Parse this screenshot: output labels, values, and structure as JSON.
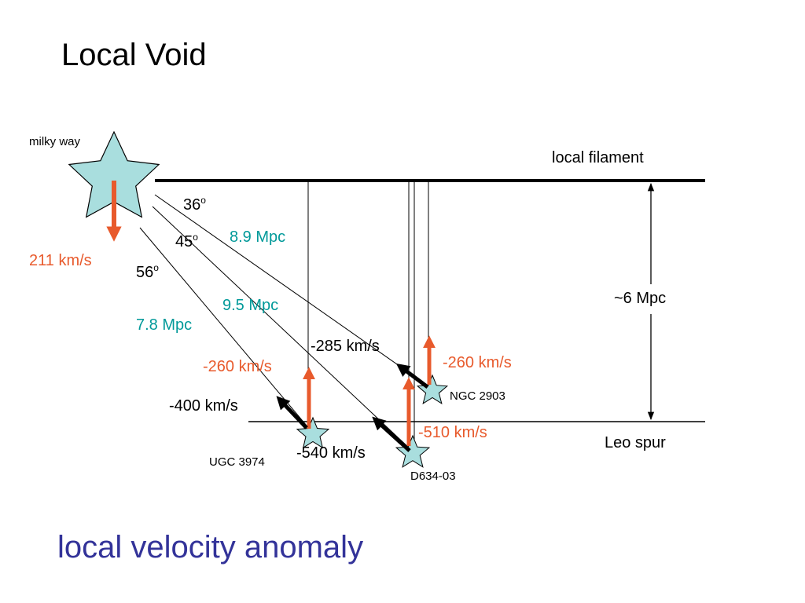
{
  "title": "Local Void",
  "subtitle": "local velocity anomaly",
  "colors": {
    "velocity_arrow": "#e85a2c",
    "distance_text": "#009999",
    "star_fill": "#a9dede",
    "subtitle": "#333399"
  },
  "labels": {
    "milky_way": "milky way",
    "milky_way_velocity": "211 km/s",
    "local_filament": "local filament",
    "leo_spur": "Leo spur",
    "separation": "~6 Mpc"
  },
  "angles": [
    {
      "value": "36",
      "unit": "o"
    },
    {
      "value": "45",
      "unit": "o"
    },
    {
      "value": "56",
      "unit": "o"
    }
  ],
  "distances": [
    "8.9 Mpc",
    "9.5 Mpc",
    "7.8 Mpc"
  ],
  "galaxies": [
    {
      "name": "NGC 2903",
      "radial_velocity": "-285 km/s",
      "vertical_velocity": "-260 km/s"
    },
    {
      "name": "UGC 3974",
      "radial_velocity": "-400 km/s",
      "vertical_velocity": "-260 km/s"
    },
    {
      "name": "D634-03",
      "radial_velocity": "-540 km/s",
      "vertical_velocity": "-510 km/s"
    }
  ]
}
